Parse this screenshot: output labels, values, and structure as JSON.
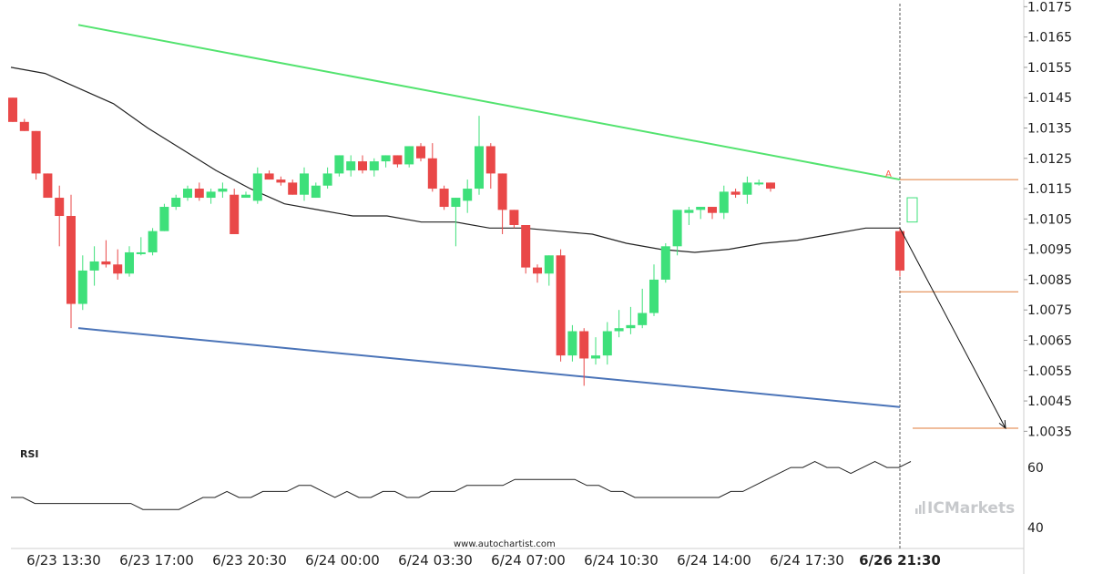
{
  "source_label": "www.autochartist.com",
  "logo": {
    "prefix": "IC",
    "text": "Markets"
  },
  "colors": {
    "up": "#3ee07a",
    "down": "#e94848",
    "ma": "#222222",
    "resistance": "#53e36f",
    "support": "#4b74b8",
    "level": "#e07b39",
    "rsi": "#222222"
  },
  "chart_data": {
    "type": "candlestick",
    "y_ticks": [
      "1.0175",
      "1.0165",
      "1.0155",
      "1.0145",
      "1.0135",
      "1.0125",
      "1.0115",
      "1.0105",
      "1.0095",
      "1.0085",
      "1.0075",
      "1.0065",
      "1.0055",
      "1.0045",
      "1.0035"
    ],
    "ylim": [
      1.003,
      1.0176
    ],
    "x_ticks": [
      "6/23 13:30",
      "6/23 17:00",
      "6/23 20:30",
      "6/24 00:00",
      "6/24 03:30",
      "6/24 07:00",
      "6/24 10:30",
      "6/24 14:00",
      "6/24 17:30",
      "6/26 21:30"
    ],
    "x_ticks_bold_index": 9,
    "candles": [
      [
        1.0145,
        1.0145,
        1.0137,
        1.0137
      ],
      [
        1.0137,
        1.0138,
        1.0134,
        1.0134
      ],
      [
        1.0134,
        1.0134,
        1.0118,
        1.012
      ],
      [
        1.012,
        1.012,
        1.0112,
        1.0112
      ],
      [
        1.0112,
        1.0116,
        1.0096,
        1.0106
      ],
      [
        1.0106,
        1.0113,
        1.0069,
        1.0077
      ],
      [
        1.0077,
        1.0093,
        1.0075,
        1.0088
      ],
      [
        1.0088,
        1.0096,
        1.0083,
        1.0091
      ],
      [
        1.0091,
        1.0098,
        1.0089,
        1.009
      ],
      [
        1.009,
        1.0095,
        1.0085,
        1.0087
      ],
      [
        1.0087,
        1.0096,
        1.0086,
        1.0094
      ],
      [
        1.0094,
        1.0099,
        1.0093,
        1.0094
      ],
      [
        1.0094,
        1.0102,
        1.0093,
        1.0101
      ],
      [
        1.0101,
        1.011,
        1.0101,
        1.0109
      ],
      [
        1.0109,
        1.0113,
        1.0108,
        1.0112
      ],
      [
        1.0112,
        1.0116,
        1.0111,
        1.0115
      ],
      [
        1.0115,
        1.0117,
        1.0111,
        1.0112
      ],
      [
        1.0112,
        1.0115,
        1.011,
        1.0114
      ],
      [
        1.0114,
        1.0117,
        1.0112,
        1.0115
      ],
      [
        1.0113,
        1.0115,
        1.01,
        1.01
      ],
      [
        1.0112,
        1.0114,
        1.0112,
        1.0113
      ],
      [
        1.0111,
        1.0122,
        1.011,
        1.012
      ],
      [
        1.012,
        1.0121,
        1.0118,
        1.0118
      ],
      [
        1.0118,
        1.0119,
        1.0116,
        1.0117
      ],
      [
        1.0117,
        1.0118,
        1.0113,
        1.0113
      ],
      [
        1.0113,
        1.0122,
        1.0111,
        1.012
      ],
      [
        1.0112,
        1.0117,
        1.0112,
        1.0116
      ],
      [
        1.0116,
        1.0122,
        1.0115,
        1.012
      ],
      [
        1.012,
        1.0126,
        1.0119,
        1.0126
      ],
      [
        1.0121,
        1.0126,
        1.0119,
        1.0124
      ],
      [
        1.0124,
        1.0126,
        1.012,
        1.0121
      ],
      [
        1.0121,
        1.0125,
        1.0119,
        1.0124
      ],
      [
        1.0124,
        1.0126,
        1.0122,
        1.0126
      ],
      [
        1.0126,
        1.0126,
        1.0122,
        1.0123
      ],
      [
        1.0123,
        1.0129,
        1.0122,
        1.0129
      ],
      [
        1.0129,
        1.013,
        1.0124,
        1.0125
      ],
      [
        1.0125,
        1.013,
        1.0114,
        1.0115
      ],
      [
        1.0115,
        1.0116,
        1.0108,
        1.0109
      ],
      [
        1.0109,
        1.0112,
        1.0096,
        1.0112
      ],
      [
        1.0111,
        1.0118,
        1.0107,
        1.0115
      ],
      [
        1.0115,
        1.0139,
        1.0113,
        1.0129
      ],
      [
        1.0129,
        1.013,
        1.0115,
        1.012
      ],
      [
        1.012,
        1.012,
        1.01,
        1.0108
      ],
      [
        1.0108,
        1.0108,
        1.0102,
        1.0103
      ],
      [
        1.0103,
        1.0103,
        1.0087,
        1.0089
      ],
      [
        1.0089,
        1.009,
        1.0084,
        1.0087
      ],
      [
        1.0087,
        1.0093,
        1.0083,
        1.0093
      ],
      [
        1.0093,
        1.0095,
        1.0058,
        1.006
      ],
      [
        1.006,
        1.007,
        1.0058,
        1.0068
      ],
      [
        1.0068,
        1.0069,
        1.005,
        1.0059
      ],
      [
        1.0059,
        1.0066,
        1.0057,
        1.006
      ],
      [
        1.006,
        1.0071,
        1.0057,
        1.0068
      ],
      [
        1.0068,
        1.0075,
        1.0066,
        1.0069
      ],
      [
        1.0069,
        1.0076,
        1.0067,
        1.007
      ],
      [
        1.007,
        1.0082,
        1.0069,
        1.0074
      ],
      [
        1.0074,
        1.009,
        1.0073,
        1.0085
      ],
      [
        1.0085,
        1.0097,
        1.0084,
        1.0096
      ],
      [
        1.0096,
        1.0108,
        1.0093,
        1.0108
      ],
      [
        1.0107,
        1.0109,
        1.0103,
        1.0108
      ],
      [
        1.0108,
        1.0109,
        1.0105,
        1.0109
      ],
      [
        1.0109,
        1.0109,
        1.0105,
        1.0107
      ],
      [
        1.0107,
        1.0116,
        1.0105,
        1.0114
      ],
      [
        1.0114,
        1.0115,
        1.0112,
        1.0113
      ],
      [
        1.0113,
        1.0119,
        1.011,
        1.0117
      ],
      [
        1.0117,
        1.0118,
        1.0116,
        1.0117
      ],
      [
        1.0117,
        1.0117,
        1.0114,
        1.0115
      ]
    ],
    "last_candle": [
      1.0101,
      1.0102,
      1.0086,
      1.0088
    ],
    "forecast_box": [
      1.0112,
      1.0104
    ],
    "moving_average": [
      1.0155,
      1.0153,
      1.0148,
      1.0143,
      1.0135,
      1.0128,
      1.0121,
      1.0115,
      1.011,
      1.0108,
      1.0106,
      1.0106,
      1.0104,
      1.0104,
      1.0102,
      1.0102,
      1.0101,
      1.01,
      1.0097,
      1.0095,
      1.0094,
      1.0095,
      1.0097,
      1.0098,
      1.01,
      1.0102,
      1.0102
    ],
    "resistance": [
      [
        1.0169,
        1.0118
      ]
    ],
    "support": [
      [
        1.0069,
        1.0043
      ]
    ],
    "levels": [
      1.0118,
      1.0081,
      1.0036
    ],
    "projection_target": 1.0036,
    "marker_label": "A",
    "rsi": {
      "label": "RSI",
      "ticks": [
        "60",
        "40"
      ],
      "ylim": [
        33,
        67
      ],
      "values": [
        50,
        50,
        48,
        48,
        48,
        48,
        48,
        48,
        48,
        48,
        48,
        46,
        46,
        46,
        46,
        48,
        50,
        50,
        52,
        50,
        50,
        52,
        52,
        52,
        54,
        54,
        52,
        50,
        52,
        50,
        50,
        52,
        52,
        50,
        50,
        52,
        52,
        52,
        54,
        54,
        54,
        54,
        56,
        56,
        56,
        56,
        56,
        56,
        54,
        54,
        52,
        52,
        50,
        50,
        50,
        50,
        50,
        50,
        50,
        50,
        52,
        52,
        54,
        56,
        58,
        60,
        60,
        62,
        60,
        60,
        58,
        60,
        62,
        60,
        60,
        62
      ]
    }
  }
}
